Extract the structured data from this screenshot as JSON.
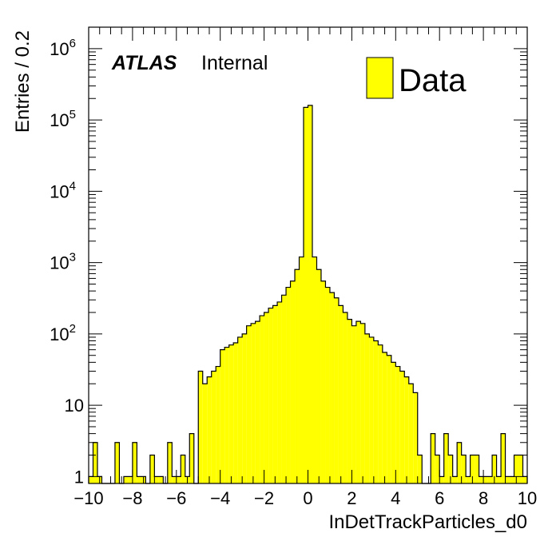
{
  "chart_data": {
    "type": "histogram",
    "xlabel": "InDetTrackParticles_d0",
    "ylabel": "Entries / 0.2",
    "xlim": [
      -10,
      10
    ],
    "ylim": [
      0.8,
      2000000
    ],
    "yscale": "log",
    "bin_width": 0.2,
    "grid": false,
    "fill_color": "#ffff00",
    "line_color": "#000000",
    "legend": {
      "position": "top-right",
      "entries": [
        {
          "label": "Data"
        }
      ]
    },
    "experiment_label": {
      "atlas": "ATLAS",
      "status": "Internal"
    },
    "x_ticks": [
      -10,
      -8,
      -6,
      -4,
      -2,
      0,
      2,
      4,
      6,
      8,
      10
    ],
    "x_tick_labels": [
      "−10",
      "−8",
      "−6",
      "−4",
      "−2",
      "0",
      "2",
      "4",
      "6",
      "8",
      "10"
    ],
    "y_ticks": [
      {
        "value": 1,
        "base": "1",
        "exp": ""
      },
      {
        "value": 10,
        "base": "10",
        "exp": ""
      },
      {
        "value": 100,
        "base": "10",
        "exp": "2"
      },
      {
        "value": 1000,
        "base": "10",
        "exp": "3"
      },
      {
        "value": 10000,
        "base": "10",
        "exp": "4"
      },
      {
        "value": 100000,
        "base": "10",
        "exp": "5"
      },
      {
        "value": 1000000,
        "base": "10",
        "exp": "6"
      }
    ],
    "series": [
      {
        "name": "Data",
        "x": [
          -10.0,
          -9.8,
          -9.6,
          -9.4,
          -9.2,
          -9.0,
          -8.8,
          -8.6,
          -8.4,
          -8.2,
          -8.0,
          -7.8,
          -7.6,
          -7.4,
          -7.2,
          -7.0,
          -6.8,
          -6.6,
          -6.4,
          -6.2,
          -6.0,
          -5.8,
          -5.6,
          -5.4,
          -5.2,
          -5.0,
          -4.8,
          -4.6,
          -4.4,
          -4.2,
          -4.0,
          -3.8,
          -3.6,
          -3.4,
          -3.2,
          -3.0,
          -2.8,
          -2.6,
          -2.4,
          -2.2,
          -2.0,
          -1.8,
          -1.6,
          -1.4,
          -1.2,
          -1.0,
          -0.8,
          -0.6,
          -0.4,
          -0.2,
          0.0,
          0.2,
          0.4,
          0.6,
          0.8,
          1.0,
          1.2,
          1.4,
          1.6,
          1.8,
          2.0,
          2.2,
          2.4,
          2.6,
          2.8,
          3.0,
          3.2,
          3.4,
          3.6,
          3.8,
          4.0,
          4.2,
          4.4,
          4.6,
          4.8,
          5.0,
          5.2,
          5.4,
          5.6,
          5.8,
          6.0,
          6.2,
          6.4,
          6.6,
          6.8,
          7.0,
          7.2,
          7.4,
          7.6,
          7.8,
          8.0,
          8.2,
          8.4,
          8.6,
          8.8,
          9.0,
          9.2,
          9.4,
          9.6,
          9.8
        ],
        "values": [
          1,
          3,
          1,
          0,
          0,
          0,
          3,
          0,
          1,
          1,
          3,
          1,
          1,
          0,
          2,
          1,
          1,
          0,
          3,
          1,
          1,
          2,
          1,
          4,
          0,
          30,
          20,
          25,
          30,
          35,
          60,
          65,
          70,
          75,
          90,
          100,
          130,
          140,
          150,
          180,
          200,
          230,
          250,
          280,
          350,
          450,
          550,
          800,
          1200,
          150000,
          160000,
          1200,
          800,
          550,
          450,
          380,
          320,
          250,
          200,
          160,
          130,
          150,
          140,
          100,
          90,
          80,
          70,
          55,
          50,
          40,
          35,
          30,
          25,
          20,
          15,
          2,
          0,
          0,
          4,
          2,
          1,
          4,
          2,
          1,
          3,
          2,
          1,
          2,
          2,
          1,
          1,
          1,
          2,
          1,
          4,
          1,
          1,
          2,
          2,
          1
        ]
      }
    ]
  }
}
